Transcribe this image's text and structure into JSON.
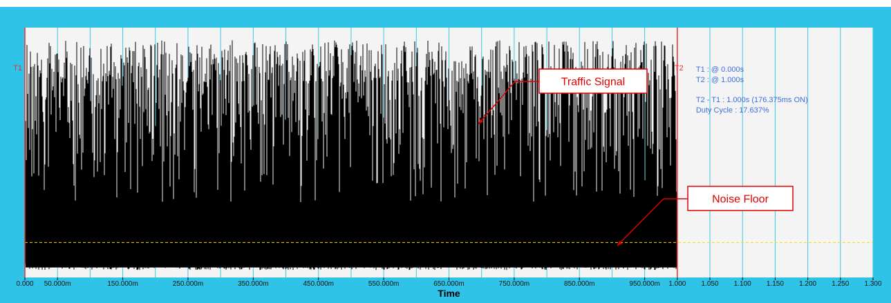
{
  "chart_data": {
    "type": "line",
    "xlabel": "Time",
    "ylabel": "",
    "xlim": [
      0,
      1.3
    ],
    "x_tick_labels": [
      "0.000",
      "50.000m",
      "150.000m",
      "250.000m",
      "350.000m",
      "450.000m",
      "550.000m",
      "650.000m",
      "750.000m",
      "850.000m",
      "950.000m",
      "1.000",
      "1.050",
      "1.100",
      "1.150",
      "1.200",
      "1.250",
      "1.300"
    ],
    "x_tick_values": [
      0,
      0.05,
      0.15,
      0.25,
      0.35,
      0.45,
      0.55,
      0.65,
      0.75,
      0.85,
      0.95,
      1.0,
      1.05,
      1.1,
      1.15,
      1.2,
      1.25,
      1.3
    ],
    "grid": true,
    "signal_end": 1.0,
    "cursors": [
      {
        "name": "T1",
        "x": 0.0
      },
      {
        "name": "T2",
        "x": 1.0
      }
    ],
    "noise_floor_level": 0.14,
    "readouts": [
      "T1 : @ 0.000s",
      "T2 : @ 1.000s",
      "T2 - T1 : 1.000s (176.375ms ON)",
      "Duty Cycle : 17.637%"
    ],
    "annotations": [
      {
        "text": "Traffic Signal"
      },
      {
        "text": "Noise Floor"
      }
    ]
  },
  "colors": {
    "frame": "#2fc3e8",
    "plot_bg": "#f4f4f4",
    "grid": "#38c8e6",
    "signal": "#000000",
    "cursor": "#e83030",
    "noise_floor": "#f0e000",
    "readout": "#3c6ee0",
    "callout": "#e00000"
  }
}
